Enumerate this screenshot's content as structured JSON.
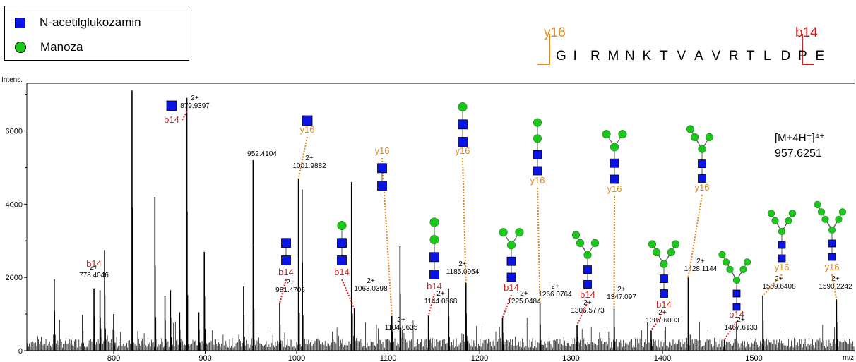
{
  "legend": {
    "items": [
      {
        "label": "N-acetilglukozamin",
        "symbol": "square",
        "color": "#0a14e6"
      },
      {
        "label": "Manoza",
        "symbol": "circle",
        "color": "#19c819"
      }
    ]
  },
  "peptide": {
    "sequence": [
      "G",
      "I",
      "R",
      "M",
      "N",
      "K",
      "T",
      "V",
      "A",
      "V",
      "R",
      "T",
      "L",
      "D",
      "P",
      "E"
    ],
    "y_fragment_label": "y16",
    "b_fragment_label": "b14",
    "y_color": "#e08a1e",
    "b_color": "#d02020"
  },
  "chart_data": {
    "type": "bar",
    "title": "",
    "xlabel": "m/z",
    "ylabel": "Intens.",
    "xlim": [
      705,
      1610
    ],
    "ylim": [
      0,
      7300
    ],
    "x_ticks": [
      800,
      900,
      1000,
      1100,
      1200,
      1300,
      1400,
      1500
    ],
    "y_ticks": [
      0,
      2000,
      4000,
      6000
    ],
    "peaks": [
      {
        "x": 735,
        "y": 1950
      },
      {
        "x": 766,
        "y": 980
      },
      {
        "x": 778.4,
        "y": 1700
      },
      {
        "x": 785,
        "y": 1650
      },
      {
        "x": 790,
        "y": 2750
      },
      {
        "x": 800,
        "y": 1000
      },
      {
        "x": 820,
        "y": 7100
      },
      {
        "x": 845,
        "y": 4200
      },
      {
        "x": 856,
        "y": 1500
      },
      {
        "x": 862,
        "y": 1650
      },
      {
        "x": 872,
        "y": 1050
      },
      {
        "x": 879.94,
        "y": 6900
      },
      {
        "x": 893,
        "y": 1050
      },
      {
        "x": 899,
        "y": 2700
      },
      {
        "x": 942,
        "y": 1750
      },
      {
        "x": 952.41,
        "y": 5200
      },
      {
        "x": 981.47,
        "y": 1300
      },
      {
        "x": 1001.99,
        "y": 4700
      },
      {
        "x": 1006,
        "y": 4400
      },
      {
        "x": 1060,
        "y": 4600
      },
      {
        "x": 1063.04,
        "y": 1150
      },
      {
        "x": 1104.06,
        "y": 950
      },
      {
        "x": 1113,
        "y": 2850
      },
      {
        "x": 1144.07,
        "y": 950
      },
      {
        "x": 1166,
        "y": 1700
      },
      {
        "x": 1185.1,
        "y": 1850
      },
      {
        "x": 1225.05,
        "y": 900
      },
      {
        "x": 1266.08,
        "y": 1300
      },
      {
        "x": 1306.58,
        "y": 700
      },
      {
        "x": 1347.1,
        "y": 1150
      },
      {
        "x": 1387.6,
        "y": 550
      },
      {
        "x": 1428.11,
        "y": 2000
      },
      {
        "x": 1467.61,
        "y": 300
      },
      {
        "x": 1509.64,
        "y": 1500
      },
      {
        "x": 1590.22,
        "y": 1400
      }
    ],
    "annotations": [
      {
        "x": 778.4046,
        "charge": "2+",
        "label": "778.4046",
        "fragment": "b14"
      },
      {
        "x": 879.9397,
        "charge": "2+",
        "label": "879.9397",
        "fragment": "b14",
        "glycan": [
          "N"
        ]
      },
      {
        "x": 952.4104,
        "label": "952.4104"
      },
      {
        "x": 981.4705,
        "charge": "2+",
        "label": "981.4705",
        "fragment": "b14",
        "glycan": [
          "N",
          "N"
        ]
      },
      {
        "x": 1001.9882,
        "charge": "2+",
        "label": "1001.9882",
        "fragment": "y16",
        "glycan": [
          "N"
        ]
      },
      {
        "x": 1063.0398,
        "charge": "2+",
        "label": "1063.0398",
        "fragment": "b14",
        "glycan": [
          "N",
          "N",
          "M"
        ]
      },
      {
        "x": 1104.0635,
        "charge": "2+",
        "label": "1104.0635",
        "fragment": "y16",
        "glycan": [
          "N",
          "N"
        ]
      },
      {
        "x": 1144.0668,
        "charge": "2+",
        "label": "1144.0668",
        "fragment": "b14",
        "glycan": [
          "N",
          "N",
          "M",
          "M"
        ]
      },
      {
        "x": 1185.0954,
        "charge": "2+",
        "label": "1185.0954",
        "fragment": "y16",
        "glycan": [
          "N",
          "N",
          "M"
        ]
      },
      {
        "x": 1225.0484,
        "charge": "2+",
        "label": "1225.0484",
        "fragment": "b14",
        "glycan": [
          "N",
          "N",
          "M",
          "M",
          "M"
        ]
      },
      {
        "x": 1266.0764,
        "charge": "2+",
        "label": "1266.0764",
        "fragment": "y16",
        "glycan": [
          "N",
          "N",
          "M",
          "M"
        ]
      },
      {
        "x": 1306.5773,
        "charge": "2+",
        "label": "1306.5773",
        "fragment": "b14",
        "glycan": [
          "N",
          "N",
          "M",
          "M",
          "M",
          "M"
        ]
      },
      {
        "x": 1347.097,
        "charge": "2+",
        "label": "1347.097",
        "fragment": "y16",
        "glycan": [
          "N",
          "N",
          "M",
          "M",
          "M"
        ]
      },
      {
        "x": 1387.6003,
        "charge": "2+",
        "label": "1387.6003",
        "fragment": "b14",
        "glycan": [
          "N",
          "N",
          "M",
          "M",
          "M",
          "M",
          "M"
        ]
      },
      {
        "x": 1428.1144,
        "charge": "2+",
        "label": "1428.1144",
        "fragment": "y16",
        "glycan": [
          "N",
          "N",
          "M",
          "M",
          "M",
          "M"
        ]
      },
      {
        "x": 1467.6133,
        "charge": "2+",
        "label": "1467.6133",
        "fragment": "b14",
        "glycan": [
          "N",
          "N",
          "M",
          "M",
          "M",
          "M",
          "M",
          "M"
        ]
      },
      {
        "x": 1509.6408,
        "charge": "2+",
        "label": "1509.6408",
        "fragment": "y16",
        "glycan": [
          "N",
          "N",
          "M",
          "M",
          "M",
          "M",
          "M"
        ]
      },
      {
        "x": 1590.2242,
        "charge": "2+",
        "label": "1590.2242",
        "fragment": "y16",
        "glycan": [
          "N",
          "N",
          "M",
          "M",
          "M",
          "M",
          "M",
          "M"
        ]
      }
    ],
    "precursor": {
      "label": "[M+4H⁺]⁴⁺",
      "mz": "957.6251"
    }
  }
}
